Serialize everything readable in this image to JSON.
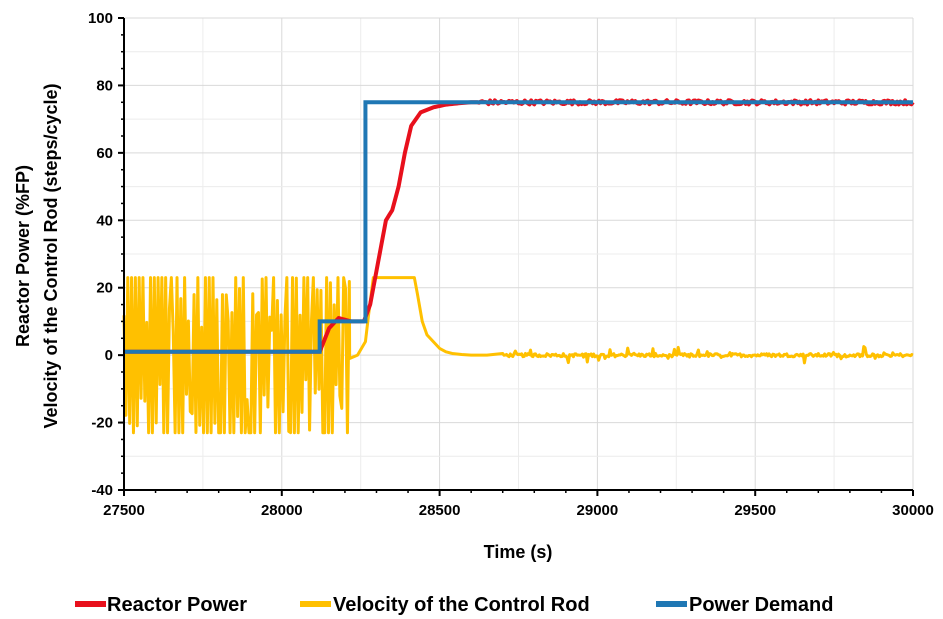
{
  "chart_data": {
    "type": "line",
    "title": "",
    "xlabel": "Time (s)",
    "ylabel": [
      "Reactor Power (%FP)",
      "Velocity of the Control Rod (steps/cycle)"
    ],
    "xlim": [
      27500,
      30000
    ],
    "ylim": [
      -40,
      100
    ],
    "x_ticks": [
      27500,
      28000,
      28500,
      29000,
      29500,
      30000
    ],
    "y_ticks": [
      -40,
      -20,
      0,
      20,
      40,
      60,
      80,
      100
    ],
    "x_tick_labels": [
      "27500",
      "28000",
      "28500",
      "29000",
      "29500",
      "30000"
    ],
    "y_tick_labels": [
      "-40",
      "-20",
      "0",
      "20",
      "40",
      "60",
      "80",
      "100"
    ],
    "grid": true,
    "legend_position": "bottom",
    "series": [
      {
        "name": "Reactor Power",
        "color": "#e8101c",
        "style": "noisy",
        "noise": 0.4,
        "x": [
          27500,
          28120,
          28150,
          28180,
          28220,
          28260,
          28280,
          28300,
          28330,
          28350,
          28370,
          28390,
          28410,
          28440,
          28480,
          28520,
          28560,
          28600,
          28650,
          28700,
          30000
        ],
        "y": [
          1,
          1,
          8,
          11,
          10,
          10,
          15,
          25,
          40,
          43,
          50,
          60,
          68,
          72,
          73.5,
          74.3,
          74.7,
          75,
          75,
          75,
          75
        ]
      },
      {
        "name": "Velocity of the Control Rod",
        "color": "#ffc000",
        "style": "oscillating",
        "oscillation": {
          "start": 27500,
          "end": 28215,
          "amplitude": 23,
          "step": 6
        },
        "x": [
          28215,
          28240,
          28265,
          28275,
          28290,
          28420,
          28430,
          28445,
          28460,
          28480,
          28500,
          28520,
          28540,
          28570,
          28600,
          28650,
          30000
        ],
        "y": [
          -1,
          0,
          4,
          12,
          23,
          23,
          18,
          10,
          6,
          4,
          2,
          1,
          0.5,
          0.2,
          0,
          0,
          0
        ],
        "noise_after": {
          "from": 28700,
          "amplitude": 1.5
        }
      },
      {
        "name": "Power Demand",
        "color": "#1f77b4",
        "style": "step",
        "x": [
          27500,
          28120,
          28120,
          28265,
          28265,
          30000
        ],
        "y": [
          1,
          1,
          10,
          10,
          75,
          75
        ]
      }
    ]
  }
}
